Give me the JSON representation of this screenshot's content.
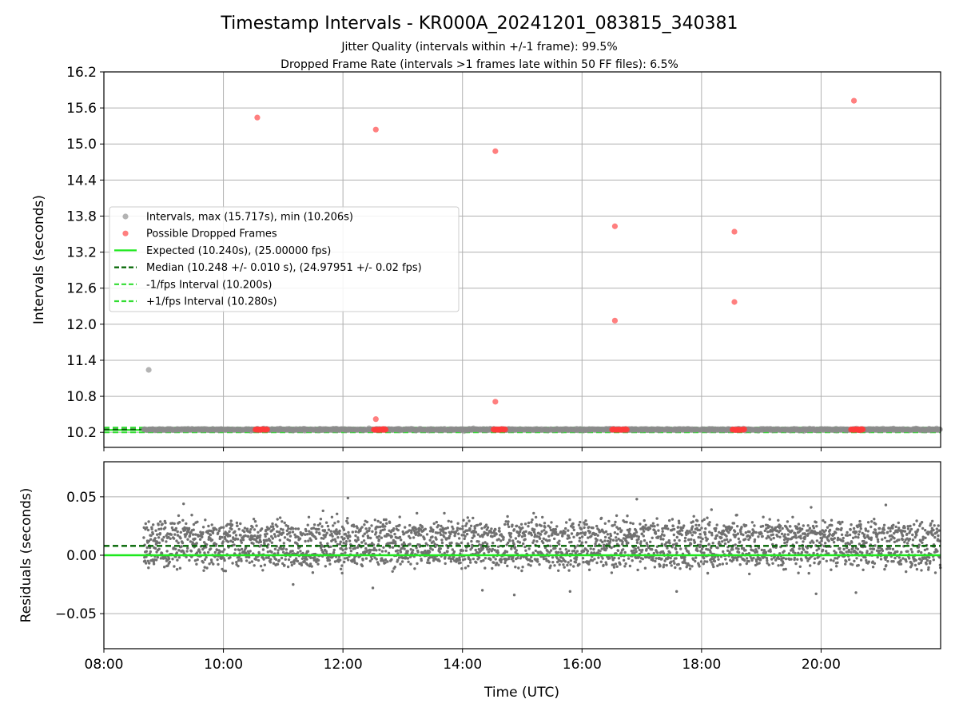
{
  "figure": {
    "title": "Timestamp Intervals - KR000A_20241201_083815_340381",
    "subtitle_line1": "Jitter Quality (intervals within +/-1 frame): 99.5%",
    "subtitle_line2": "Dropped Frame Rate (intervals >1 frames late within 50 FF files): 6.5%"
  },
  "colors": {
    "intervals": "#8c8c8c",
    "dropped": "#ff3b3b",
    "expected": "#1ee81e",
    "median": "#006400",
    "band": "#33dd33",
    "residual": "#707070",
    "grid": "#b0b0b0"
  },
  "chart_data": [
    {
      "type": "scatter",
      "panel": "top",
      "xlabel": "",
      "ylabel": "Intervals (seconds)",
      "xlim": [
        "08:00",
        "22:00"
      ],
      "ylim": [
        9.95,
        16.2
      ],
      "yticks": [
        "10.2",
        "10.8",
        "11.4",
        "12.0",
        "12.6",
        "13.2",
        "13.8",
        "14.4",
        "15.0",
        "15.6",
        "16.2"
      ],
      "xticks": [
        "08:00",
        "10:00",
        "12:00",
        "14:00",
        "16:00",
        "18:00",
        "20:00"
      ],
      "grid": true,
      "legend_position": "center-left",
      "legend": [
        "Intervals, max (15.717s), min (10.206s)",
        "Possible Dropped Frames",
        "Expected (10.240s), (25.00000 fps)",
        "Median (10.248 +/- 0.010 s), (24.97951 +/- 0.02 fps)",
        "-1/fps Interval (10.200s)",
        "+1/fps Interval (10.280s)"
      ],
      "series": [
        {
          "name": "Intervals, max (15.717s), min (10.206s)",
          "kind": "scatter",
          "points": [
            {
              "x": "08:45",
              "y": 11.24
            }
          ],
          "note": "dense band of intervals between 10.206 and 10.28 from 08:40 to 22:00"
        },
        {
          "name": "Possible Dropped Frames",
          "kind": "scatter",
          "points": [
            {
              "x": "10:34",
              "y": 15.44
            },
            {
              "x": "12:33",
              "y": 15.24
            },
            {
              "x": "12:33",
              "y": 10.42
            },
            {
              "x": "14:33",
              "y": 14.88
            },
            {
              "x": "14:33",
              "y": 10.71
            },
            {
              "x": "16:33",
              "y": 13.63
            },
            {
              "x": "16:33",
              "y": 12.06
            },
            {
              "x": "18:33",
              "y": 13.54
            },
            {
              "x": "18:33",
              "y": 12.37
            },
            {
              "x": "20:33",
              "y": 15.72
            }
          ],
          "clusters": [
            {
              "x_start": "10:32",
              "x_end": "10:44",
              "y": 10.245
            },
            {
              "x_start": "12:31",
              "x_end": "12:43",
              "y": 10.245
            },
            {
              "x_start": "14:31",
              "x_end": "14:43",
              "y": 10.245
            },
            {
              "x_start": "16:30",
              "x_end": "16:45",
              "y": 10.245
            },
            {
              "x_start": "18:31",
              "x_end": "18:43",
              "y": 10.245
            },
            {
              "x_start": "20:30",
              "x_end": "20:42",
              "y": 10.245
            }
          ]
        },
        {
          "name": "Expected (10.240s), (25.00000 fps)",
          "kind": "hline",
          "y": 10.24
        },
        {
          "name": "Median (10.248 +/- 0.010 s), (24.97951 +/- 0.02 fps)",
          "kind": "hline",
          "y": 10.248
        },
        {
          "name": "-1/fps Interval (10.200s)",
          "kind": "hline",
          "y": 10.2
        },
        {
          "name": "+1/fps Interval (10.280s)",
          "kind": "hline",
          "y": 10.28
        }
      ]
    },
    {
      "type": "scatter",
      "panel": "bottom",
      "xlabel": "Time (UTC)",
      "ylabel": "Residuals (seconds)",
      "xlim": [
        "08:00",
        "22:00"
      ],
      "ylim": [
        -0.08,
        0.08
      ],
      "yticks": [
        "−0.05",
        "0.00",
        "0.05"
      ],
      "ytick_values": [
        -0.05,
        0.0,
        0.05
      ],
      "xticks": [
        "08:00",
        "10:00",
        "12:00",
        "14:00",
        "16:00",
        "18:00",
        "20:00"
      ],
      "grid": true,
      "series": [
        {
          "kind": "scatter",
          "x_range": [
            "08:40",
            "22:00"
          ],
          "y_range": [
            -0.034,
            0.049
          ],
          "bands": [
            0.019,
            0.0
          ],
          "outliers": [
            {
              "x": "09:20",
              "y": 0.044
            },
            {
              "x": "11:10",
              "y": -0.025
            },
            {
              "x": "11:40",
              "y": 0.038
            },
            {
              "x": "12:05",
              "y": 0.049
            },
            {
              "x": "12:30",
              "y": -0.028
            },
            {
              "x": "14:20",
              "y": -0.03
            },
            {
              "x": "14:52",
              "y": -0.034
            },
            {
              "x": "15:48",
              "y": -0.031
            },
            {
              "x": "16:55",
              "y": 0.048
            },
            {
              "x": "17:35",
              "y": -0.031
            },
            {
              "x": "18:10",
              "y": 0.039
            },
            {
              "x": "19:50",
              "y": 0.041
            },
            {
              "x": "19:55",
              "y": -0.033
            },
            {
              "x": "21:05",
              "y": 0.043
            },
            {
              "x": "20:35",
              "y": -0.032
            }
          ]
        },
        {
          "kind": "hline",
          "y": 0.008,
          "style": "median"
        },
        {
          "kind": "hline",
          "y": 0.0,
          "style": "expected"
        }
      ]
    }
  ]
}
